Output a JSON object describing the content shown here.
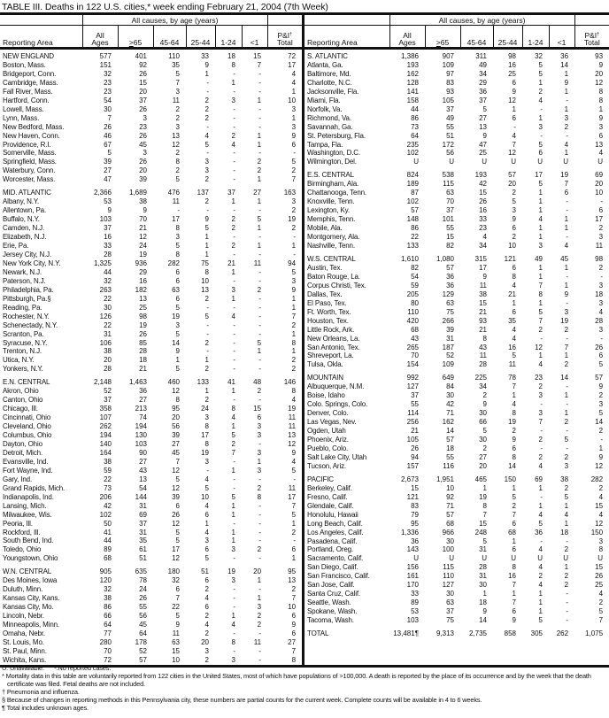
{
  "title": "TABLE III. Deaths in 122 U.S. cities,* week ending February 21, 2004 (7th Week)",
  "header": {
    "caption": "All causes, by age (years)",
    "area": "Reporting Area",
    "all_ages": [
      "All",
      "Ages"
    ],
    "age65": "65",
    "age65_prefix": ">",
    "c4564": "45-64",
    "c2544": "25-44",
    "c124": "1-24",
    "c1": "<1",
    "pi": [
      "P&I",
      "Total"
    ],
    "pi_mark": "†"
  },
  "left": [
    [
      "NEW ENGLAND",
      "577",
      "401",
      "110",
      "33",
      "18",
      "15",
      "72"
    ],
    [
      "Boston, Mass.",
      "151",
      "92",
      "35",
      "9",
      "8",
      "7",
      "17"
    ],
    [
      "Bridgeport, Conn.",
      "32",
      "26",
      "5",
      "1",
      "-",
      "-",
      "4"
    ],
    [
      "Cambridge, Mass.",
      "23",
      "15",
      "7",
      "-",
      "1",
      "-",
      "4"
    ],
    [
      "Fall River, Mass.",
      "23",
      "20",
      "3",
      "-",
      "-",
      "-",
      "1"
    ],
    [
      "Hartford, Conn.",
      "54",
      "37",
      "11",
      "2",
      "3",
      "1",
      "10"
    ],
    [
      "Lowell, Mass.",
      "30",
      "26",
      "2",
      "2",
      "-",
      "-",
      "3"
    ],
    [
      "Lynn, Mass.",
      "7",
      "3",
      "2",
      "2",
      "-",
      "-",
      "1"
    ],
    [
      "New Bedford, Mass.",
      "26",
      "23",
      "3",
      "-",
      "-",
      "-",
      "3"
    ],
    [
      "New Haven, Conn.",
      "46",
      "26",
      "13",
      "4",
      "2",
      "1",
      "9"
    ],
    [
      "Providence, R.I.",
      "67",
      "45",
      "12",
      "5",
      "4",
      "1",
      "6"
    ],
    [
      "Somerville, Mass.",
      "5",
      "3",
      "2",
      "-",
      "-",
      "-",
      "-"
    ],
    [
      "Springfield, Mass.",
      "39",
      "26",
      "8",
      "3",
      "-",
      "2",
      "5"
    ],
    [
      "Waterbury, Conn.",
      "27",
      "20",
      "2",
      "3",
      "-",
      "2",
      "2"
    ],
    [
      "Worcester, Mass.",
      "47",
      "39",
      "5",
      "2",
      "-",
      "1",
      "7"
    ],
    [
      "MID. ATLANTIC",
      "2,366",
      "1,689",
      "476",
      "137",
      "37",
      "27",
      "163"
    ],
    [
      "Albany, N.Y.",
      "53",
      "38",
      "11",
      "2",
      "1",
      "1",
      "3"
    ],
    [
      "Allentown, Pa.",
      "9",
      "9",
      "-",
      "-",
      "-",
      "-",
      "2"
    ],
    [
      "Buffalo, N.Y.",
      "103",
      "70",
      "17",
      "9",
      "2",
      "5",
      "19"
    ],
    [
      "Camden, N.J.",
      "37",
      "21",
      "8",
      "5",
      "2",
      "1",
      "2"
    ],
    [
      "Elizabeth, N.J.",
      "16",
      "12",
      "3",
      "1",
      "-",
      "-",
      "-"
    ],
    [
      "Erie, Pa.",
      "33",
      "24",
      "5",
      "1",
      "2",
      "1",
      "1"
    ],
    [
      "Jersey City, N.J.",
      "28",
      "19",
      "8",
      "1",
      "-",
      "-",
      "-"
    ],
    [
      "New York City, N.Y.",
      "1,325",
      "936",
      "282",
      "75",
      "21",
      "11",
      "94"
    ],
    [
      "Newark, N.J.",
      "44",
      "29",
      "6",
      "8",
      "1",
      "-",
      "5"
    ],
    [
      "Paterson, N.J.",
      "32",
      "16",
      "6",
      "10",
      "-",
      "-",
      "3"
    ],
    [
      "Philadelphia, Pa.",
      "263",
      "182",
      "63",
      "13",
      "3",
      "2",
      "9"
    ],
    [
      "Pittsburgh, Pa.§",
      "22",
      "13",
      "6",
      "2",
      "1",
      "-",
      "1"
    ],
    [
      "Reading, Pa.",
      "30",
      "25",
      "5",
      "-",
      "-",
      "-",
      "1"
    ],
    [
      "Rochester, N.Y.",
      "126",
      "98",
      "19",
      "5",
      "4",
      "-",
      "7"
    ],
    [
      "Schenectady, N.Y.",
      "22",
      "19",
      "3",
      "-",
      "-",
      "-",
      "2"
    ],
    [
      "Scranton, Pa.",
      "31",
      "26",
      "5",
      "-",
      "-",
      "-",
      "1"
    ],
    [
      "Syracuse, N.Y.",
      "106",
      "85",
      "14",
      "2",
      "-",
      "5",
      "8"
    ],
    [
      "Trenton, N.J.",
      "38",
      "28",
      "9",
      "-",
      "-",
      "1",
      "1"
    ],
    [
      "Utica, N.Y.",
      "20",
      "18",
      "1",
      "1",
      "-",
      "-",
      "2"
    ],
    [
      "Yonkers, N.Y.",
      "28",
      "21",
      "5",
      "2",
      "-",
      "-",
      "2"
    ],
    [
      "E.N. CENTRAL",
      "2,148",
      "1,463",
      "460",
      "133",
      "41",
      "48",
      "146"
    ],
    [
      "Akron, Ohio",
      "52",
      "36",
      "12",
      "1",
      "1",
      "2",
      "8"
    ],
    [
      "Canton, Ohio",
      "37",
      "27",
      "8",
      "2",
      "-",
      "-",
      "4"
    ],
    [
      "Chicago, Ill.",
      "358",
      "213",
      "95",
      "24",
      "8",
      "15",
      "19"
    ],
    [
      "Cincinnati, Ohio",
      "107",
      "74",
      "20",
      "3",
      "4",
      "6",
      "11"
    ],
    [
      "Cleveland, Ohio",
      "262",
      "194",
      "56",
      "8",
      "1",
      "3",
      "11"
    ],
    [
      "Columbus, Ohio",
      "194",
      "130",
      "39",
      "17",
      "5",
      "3",
      "13"
    ],
    [
      "Dayton, Ohio",
      "140",
      "103",
      "27",
      "8",
      "2",
      "-",
      "12"
    ],
    [
      "Detroit, Mich.",
      "164",
      "90",
      "45",
      "19",
      "7",
      "3",
      "9"
    ],
    [
      "Evansville, Ind.",
      "38",
      "27",
      "7",
      "3",
      "-",
      "1",
      "4"
    ],
    [
      "Fort Wayne, Ind.",
      "59",
      "43",
      "12",
      "-",
      "1",
      "3",
      "5"
    ],
    [
      "Gary, Ind.",
      "22",
      "13",
      "5",
      "4",
      "-",
      "-",
      "-"
    ],
    [
      "Grand Rapids, Mich.",
      "73",
      "54",
      "12",
      "5",
      "-",
      "2",
      "11"
    ],
    [
      "Indianapolis, Ind.",
      "206",
      "144",
      "39",
      "10",
      "5",
      "8",
      "17"
    ],
    [
      "Lansing, Mich.",
      "42",
      "31",
      "6",
      "4",
      "1",
      "-",
      "7"
    ],
    [
      "Milwaukee, Wis.",
      "102",
      "69",
      "26",
      "6",
      "1",
      "-",
      "5"
    ],
    [
      "Peoria, Ill.",
      "50",
      "37",
      "12",
      "1",
      "-",
      "-",
      "1"
    ],
    [
      "Rockford, Ill.",
      "41",
      "31",
      "5",
      "4",
      "1",
      "-",
      "2"
    ],
    [
      "South Bend, Ind.",
      "44",
      "35",
      "5",
      "3",
      "1",
      "-",
      "-"
    ],
    [
      "Toledo, Ohio",
      "89",
      "61",
      "17",
      "6",
      "3",
      "2",
      "6"
    ],
    [
      "Youngstown, Ohio",
      "68",
      "51",
      "12",
      "5",
      "-",
      "-",
      "1"
    ],
    [
      "W.N. CENTRAL",
      "905",
      "635",
      "180",
      "51",
      "19",
      "20",
      "95"
    ],
    [
      "Des Moines, Iowa",
      "120",
      "78",
      "32",
      "6",
      "3",
      "1",
      "13"
    ],
    [
      "Duluth, Minn.",
      "32",
      "24",
      "6",
      "2",
      "-",
      "-",
      "2"
    ],
    [
      "Kansas City, Kans.",
      "38",
      "26",
      "7",
      "4",
      "-",
      "1",
      "7"
    ],
    [
      "Kansas City, Mo.",
      "86",
      "55",
      "22",
      "6",
      "-",
      "3",
      "10"
    ],
    [
      "Lincoln, Nebr.",
      "66",
      "56",
      "5",
      "2",
      "1",
      "2",
      "6"
    ],
    [
      "Minneapolis, Minn.",
      "64",
      "45",
      "9",
      "4",
      "4",
      "2",
      "9"
    ],
    [
      "Omaha, Nebr.",
      "77",
      "64",
      "11",
      "2",
      "-",
      "-",
      "6"
    ],
    [
      "St. Louis, Mo.",
      "280",
      "178",
      "63",
      "20",
      "8",
      "11",
      "27"
    ],
    [
      "St. Paul, Minn.",
      "70",
      "52",
      "15",
      "3",
      "-",
      "-",
      "7"
    ],
    [
      "Wichita, Kans.",
      "72",
      "57",
      "10",
      "2",
      "3",
      "-",
      "8"
    ]
  ],
  "right": [
    [
      "S. ATLANTIC",
      "1,386",
      "907",
      "311",
      "98",
      "32",
      "36",
      "93"
    ],
    [
      "Atlanta, Ga.",
      "193",
      "109",
      "49",
      "16",
      "5",
      "14",
      "9"
    ],
    [
      "Baltimore, Md.",
      "162",
      "97",
      "34",
      "25",
      "5",
      "1",
      "20"
    ],
    [
      "Charlotte, N.C.",
      "128",
      "83",
      "29",
      "6",
      "1",
      "9",
      "12"
    ],
    [
      "Jacksonville, Fla.",
      "141",
      "93",
      "36",
      "9",
      "2",
      "1",
      "8"
    ],
    [
      "Miami, Fla.",
      "158",
      "105",
      "37",
      "12",
      "4",
      "-",
      "8"
    ],
    [
      "Norfolk, Va.",
      "44",
      "37",
      "5",
      "1",
      "-",
      "1",
      "1"
    ],
    [
      "Richmond, Va.",
      "86",
      "49",
      "27",
      "6",
      "1",
      "3",
      "9"
    ],
    [
      "Savannah, Ga.",
      "73",
      "55",
      "13",
      "-",
      "3",
      "2",
      "3"
    ],
    [
      "St. Petersburg, Fla.",
      "64",
      "51",
      "9",
      "4",
      "-",
      "-",
      "6"
    ],
    [
      "Tampa, Fla.",
      "235",
      "172",
      "47",
      "7",
      "5",
      "4",
      "13"
    ],
    [
      "Washington, D.C.",
      "102",
      "56",
      "25",
      "12",
      "6",
      "1",
      "4"
    ],
    [
      "Wilmington, Del.",
      "U",
      "U",
      "U",
      "U",
      "U",
      "U",
      "U"
    ],
    [
      "E.S. CENTRAL",
      "824",
      "538",
      "193",
      "57",
      "17",
      "19",
      "69"
    ],
    [
      "Birmingham, Ala.",
      "189",
      "115",
      "42",
      "20",
      "5",
      "7",
      "20"
    ],
    [
      "Chattanooga, Tenn.",
      "87",
      "63",
      "15",
      "2",
      "1",
      "6",
      "10"
    ],
    [
      "Knoxville, Tenn.",
      "102",
      "70",
      "26",
      "5",
      "1",
      "-",
      "-"
    ],
    [
      "Lexington, Ky.",
      "57",
      "37",
      "16",
      "3",
      "1",
      "-",
      "6"
    ],
    [
      "Memphis, Tenn.",
      "148",
      "101",
      "33",
      "9",
      "4",
      "1",
      "17"
    ],
    [
      "Mobile, Ala.",
      "86",
      "55",
      "23",
      "6",
      "1",
      "1",
      "2"
    ],
    [
      "Montgomery, Ala.",
      "22",
      "15",
      "4",
      "2",
      "1",
      "-",
      "3"
    ],
    [
      "Nashville, Tenn.",
      "133",
      "82",
      "34",
      "10",
      "3",
      "4",
      "11"
    ],
    [
      "W.S. CENTRAL",
      "1,610",
      "1,080",
      "315",
      "121",
      "49",
      "45",
      "98"
    ],
    [
      "Austin, Tex.",
      "82",
      "57",
      "17",
      "6",
      "1",
      "1",
      "2"
    ],
    [
      "Baton Rouge, La.",
      "54",
      "36",
      "9",
      "8",
      "1",
      "-",
      "-"
    ],
    [
      "Corpus Christi, Tex.",
      "59",
      "36",
      "11",
      "4",
      "7",
      "1",
      "3"
    ],
    [
      "Dallas, Tex.",
      "205",
      "129",
      "38",
      "21",
      "8",
      "9",
      "18"
    ],
    [
      "El Paso, Tex.",
      "80",
      "63",
      "15",
      "1",
      "1",
      "-",
      "3"
    ],
    [
      "Ft. Worth, Tex.",
      "110",
      "75",
      "21",
      "6",
      "5",
      "3",
      "4"
    ],
    [
      "Houston, Tex.",
      "420",
      "266",
      "93",
      "35",
      "7",
      "19",
      "28"
    ],
    [
      "Little Rock, Ark.",
      "68",
      "39",
      "21",
      "4",
      "2",
      "2",
      "3"
    ],
    [
      "New Orleans, La.",
      "43",
      "31",
      "8",
      "4",
      "-",
      "-",
      "-"
    ],
    [
      "San Antonio, Tex.",
      "265",
      "187",
      "43",
      "16",
      "12",
      "7",
      "26"
    ],
    [
      "Shreveport, La.",
      "70",
      "52",
      "11",
      "5",
      "1",
      "1",
      "6"
    ],
    [
      "Tulsa, Okla.",
      "154",
      "109",
      "28",
      "11",
      "4",
      "2",
      "5"
    ],
    [
      "MOUNTAIN",
      "992",
      "649",
      "225",
      "78",
      "23",
      "14",
      "57"
    ],
    [
      "Albuquerque, N.M.",
      "127",
      "84",
      "34",
      "7",
      "2",
      "-",
      "9"
    ],
    [
      "Boise, Idaho",
      "37",
      "30",
      "2",
      "1",
      "3",
      "1",
      "2"
    ],
    [
      "Colo. Springs, Colo.",
      "55",
      "42",
      "9",
      "4",
      "-",
      "-",
      "3"
    ],
    [
      "Denver, Colo.",
      "114",
      "71",
      "30",
      "8",
      "3",
      "1",
      "5"
    ],
    [
      "Las Vegas, Nev.",
      "256",
      "162",
      "66",
      "19",
      "7",
      "2",
      "14"
    ],
    [
      "Ogden, Utah",
      "21",
      "14",
      "5",
      "2",
      "-",
      "-",
      "2"
    ],
    [
      "Phoenix, Ariz.",
      "105",
      "57",
      "30",
      "9",
      "2",
      "5",
      "-"
    ],
    [
      "Pueblo, Colo.",
      "26",
      "18",
      "2",
      "6",
      "-",
      "-",
      "1"
    ],
    [
      "Salt Lake City, Utah",
      "94",
      "55",
      "27",
      "8",
      "2",
      "2",
      "9"
    ],
    [
      "Tucson, Ariz.",
      "157",
      "116",
      "20",
      "14",
      "4",
      "3",
      "12"
    ],
    [
      "PACIFIC",
      "2,673",
      "1,951",
      "465",
      "150",
      "69",
      "38",
      "282"
    ],
    [
      "Berkeley, Calif.",
      "15",
      "10",
      "1",
      "1",
      "1",
      "2",
      "2"
    ],
    [
      "Fresno, Calif.",
      "121",
      "92",
      "19",
      "5",
      "-",
      "5",
      "4"
    ],
    [
      "Glendale, Calif.",
      "83",
      "71",
      "8",
      "2",
      "1",
      "1",
      "15"
    ],
    [
      "Honolulu, Hawaii",
      "79",
      "57",
      "7",
      "7",
      "4",
      "4",
      "4"
    ],
    [
      "Long Beach, Calif.",
      "95",
      "68",
      "15",
      "6",
      "5",
      "1",
      "12"
    ],
    [
      "Los Angeles, Calif.",
      "1,336",
      "966",
      "248",
      "68",
      "36",
      "18",
      "150"
    ],
    [
      "Pasadena, Calif.",
      "36",
      "30",
      "5",
      "1",
      "-",
      "-",
      "3"
    ],
    [
      "Portland, Oreg.",
      "143",
      "100",
      "31",
      "6",
      "4",
      "2",
      "8"
    ],
    [
      "Sacramento, Calif.",
      "U",
      "U",
      "U",
      "U",
      "U",
      "U",
      "U"
    ],
    [
      "San Diego, Calif.",
      "156",
      "115",
      "28",
      "8",
      "4",
      "1",
      "15"
    ],
    [
      "San Francisco, Calif.",
      "161",
      "110",
      "31",
      "16",
      "2",
      "2",
      "26"
    ],
    [
      "San Jose, Calif.",
      "170",
      "127",
      "30",
      "7",
      "4",
      "2",
      "25"
    ],
    [
      "Santa Cruz, Calif.",
      "33",
      "30",
      "1",
      "1",
      "1",
      "-",
      "4"
    ],
    [
      "Seattle, Wash.",
      "89",
      "63",
      "18",
      "7",
      "1",
      "-",
      "2"
    ],
    [
      "Spokane, Wash.",
      "53",
      "37",
      "9",
      "6",
      "1",
      "-",
      "5"
    ],
    [
      "Tacoma, Wash.",
      "103",
      "75",
      "14",
      "9",
      "5",
      "-",
      "7"
    ],
    [
      "TOTAL",
      "13,481¶",
      "9,313",
      "2,735",
      "858",
      "305",
      "262",
      "1,075"
    ]
  ],
  "notes": {
    "legend": "U: Unavailable.      -:No reported cases.",
    "star": "* Mortality data in this table are voluntarily reported from 122 cities in the United States, most of which have populations of >100,000. A death is reported by the place of its occurrence and by the week that the death certificate was filed. Fetal deaths are not included.",
    "dagger": "† Pneumonia and influenza.",
    "section": "§ Because of changes in reporting methods in this Pennsylvania city, these numbers are partial counts for the current week. Complete counts will be available in 4 to 6 weeks.",
    "para": "¶ Total includes unknown ages."
  }
}
